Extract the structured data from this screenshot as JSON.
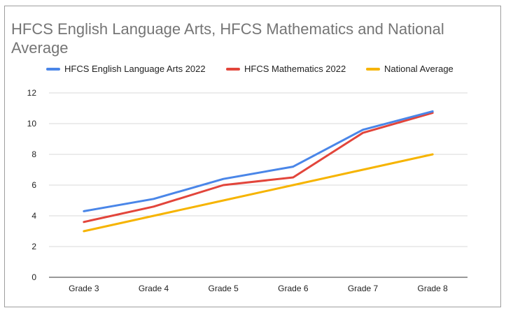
{
  "chart_data": {
    "type": "line",
    "title": "HFCS English Language Arts, HFCS Mathematics and National Average",
    "categories": [
      "Grade 3",
      "Grade 4",
      "Grade 5",
      "Grade 6",
      "Grade 7",
      "Grade 8"
    ],
    "series": [
      {
        "name": "HFCS English Language Arts 2022",
        "color": "#4a86e8",
        "values": [
          4.3,
          5.1,
          6.4,
          7.2,
          9.6,
          10.8
        ]
      },
      {
        "name": "HFCS Mathematics 2022",
        "color": "#e2453b",
        "values": [
          3.6,
          4.6,
          6.0,
          6.5,
          9.4,
          10.7
        ]
      },
      {
        "name": "National Average",
        "color": "#f6b400",
        "values": [
          3.0,
          4.0,
          5.0,
          6.0,
          7.0,
          8.0
        ]
      }
    ],
    "y_ticks": [
      "0",
      "2",
      "4",
      "6",
      "8",
      "10",
      "12"
    ],
    "ylim": [
      0,
      12
    ],
    "grid": true,
    "legend_position": "top"
  }
}
